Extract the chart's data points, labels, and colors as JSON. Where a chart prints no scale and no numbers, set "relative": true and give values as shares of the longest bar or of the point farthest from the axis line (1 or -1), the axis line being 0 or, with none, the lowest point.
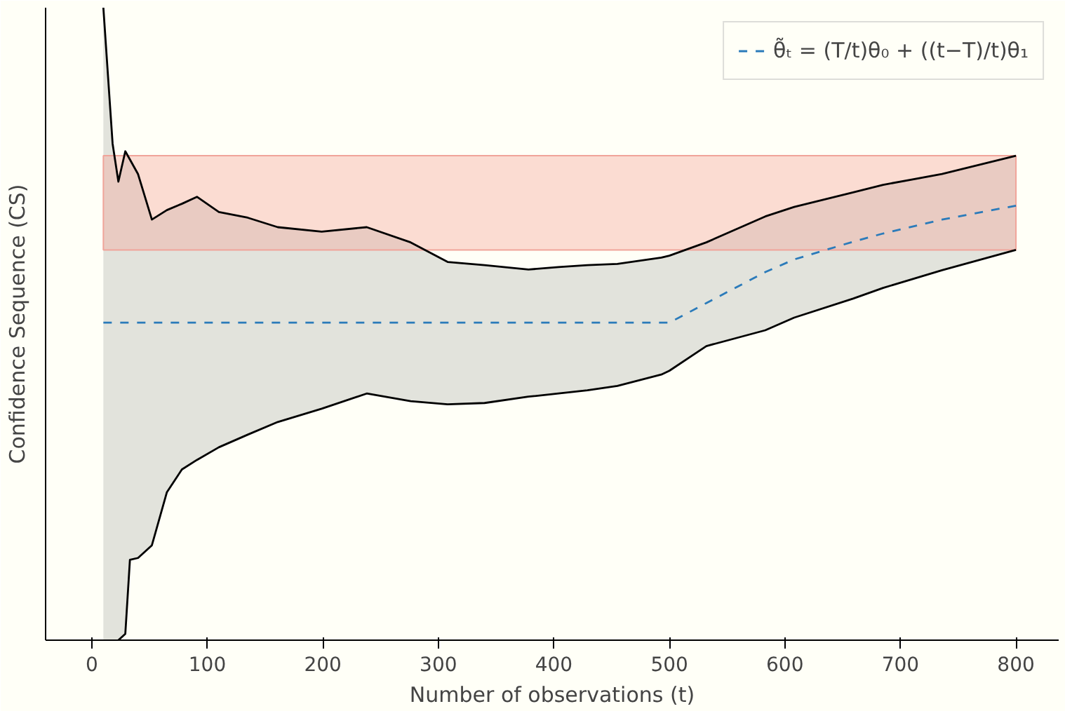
{
  "chart_data": {
    "type": "line",
    "relative": true,
    "xlabel": "Number of observations (t)",
    "ylabel": "Confidence Sequence (CS)",
    "xlim": [
      -40,
      837
    ],
    "xticks": [
      0,
      100,
      200,
      300,
      400,
      500,
      600,
      700,
      800
    ],
    "grid": false,
    "legend": "top right",
    "bands": [
      {
        "axis": "y",
        "from": 0.617,
        "to": 0.766,
        "color": "#f5a89a"
      }
    ],
    "series": [
      {
        "name": "θ̃ₜ = (T/t)θ₀ + ((t−T)/t)θ₁",
        "color": "#2b7bba",
        "line_style": "dashed",
        "x": [
          10,
          18,
          23,
          29,
          33,
          40,
          52,
          65,
          78,
          91,
          110,
          135,
          161,
          199,
          238,
          276,
          308,
          340,
          378,
          404,
          429,
          455,
          493,
          500,
          532,
          583,
          608,
          659,
          685,
          736,
          800
        ],
        "values": [
          0.502,
          0.502,
          0.502,
          0.502,
          0.502,
          0.502,
          0.502,
          0.502,
          0.502,
          0.502,
          0.502,
          0.502,
          0.502,
          0.502,
          0.502,
          0.502,
          0.502,
          0.502,
          0.502,
          0.502,
          0.502,
          0.502,
          0.502,
          0.502,
          0.533,
          0.582,
          0.602,
          0.63,
          0.643,
          0.665,
          0.687
        ],
        "upper": [
          1.0,
          0.785,
          0.725,
          0.773,
          0.76,
          0.737,
          0.665,
          0.68,
          0.69,
          0.701,
          0.677,
          0.668,
          0.653,
          0.646,
          0.653,
          0.629,
          0.598,
          0.593,
          0.586,
          0.59,
          0.593,
          0.595,
          0.605,
          0.608,
          0.629,
          0.67,
          0.685,
          0.708,
          0.72,
          0.737,
          0.766
        ],
        "lower": [
          0,
          0,
          0,
          0.01,
          0.127,
          0.13,
          0.15,
          0.234,
          0.27,
          0.285,
          0.305,
          0.325,
          0.345,
          0.366,
          0.39,
          0.378,
          0.373,
          0.375,
          0.385,
          0.39,
          0.395,
          0.402,
          0.42,
          0.426,
          0.465,
          0.49,
          0.51,
          0.54,
          0.557,
          0.585,
          0.617
        ]
      },
      {
        "color": "#000000",
        "line_style": "solid",
        "x": [
          10,
          18,
          23,
          29,
          33,
          40,
          52,
          65,
          78,
          91,
          110,
          135,
          161,
          199,
          238,
          276,
          308,
          340,
          378,
          404,
          429,
          455,
          493,
          500,
          532,
          583,
          608,
          659,
          685,
          736,
          800
        ],
        "values": [
          1.0,
          0.785,
          0.725,
          0.773,
          0.76,
          0.737,
          0.665,
          0.68,
          0.69,
          0.701,
          0.677,
          0.668,
          0.653,
          0.646,
          0.653,
          0.629,
          0.598,
          0.593,
          0.586,
          0.59,
          0.593,
          0.595,
          0.605,
          0.608,
          0.629,
          0.67,
          0.685,
          0.708,
          0.72,
          0.737,
          0.766
        ]
      },
      {
        "color": "#000000",
        "line_style": "solid",
        "x": [
          23,
          29,
          33,
          40,
          52,
          65,
          78,
          91,
          110,
          135,
          161,
          199,
          238,
          276,
          308,
          340,
          378,
          404,
          429,
          455,
          493,
          500,
          532,
          583,
          608,
          659,
          685,
          736,
          800
        ],
        "values": [
          0,
          0.01,
          0.127,
          0.13,
          0.15,
          0.234,
          0.27,
          0.285,
          0.305,
          0.325,
          0.345,
          0.366,
          0.39,
          0.378,
          0.373,
          0.375,
          0.385,
          0.39,
          0.395,
          0.402,
          0.42,
          0.426,
          0.465,
          0.49,
          0.51,
          0.54,
          0.557,
          0.585,
          0.617
        ]
      }
    ]
  }
}
